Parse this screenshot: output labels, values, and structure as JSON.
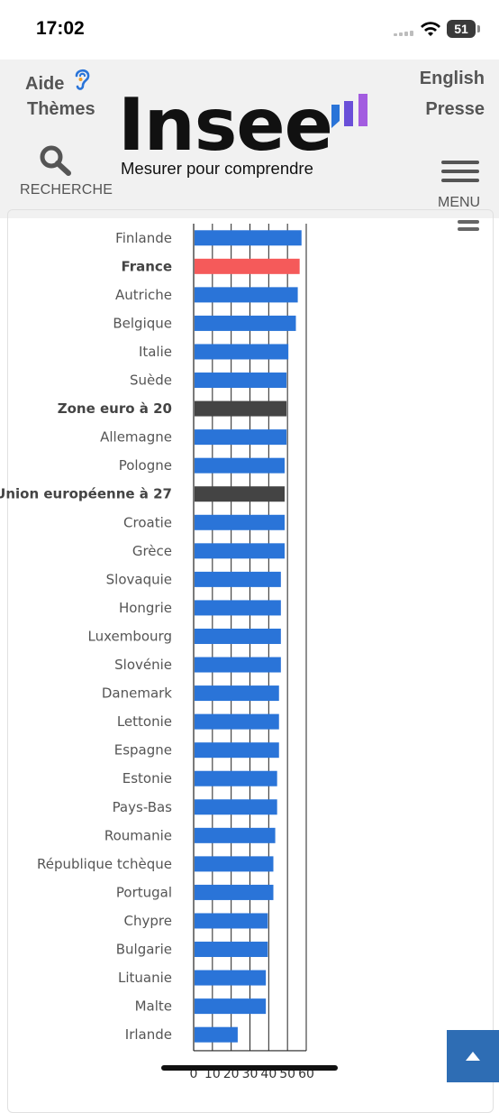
{
  "status": {
    "time": "17:02",
    "battery": "51"
  },
  "header": {
    "aide": "Aide",
    "themes": "Thèmes",
    "recherche": "RECHERCHE",
    "logo": "Insee",
    "tagline": "Mesurer pour comprendre",
    "english": "English",
    "presse": "Presse",
    "menu": "MENU"
  },
  "colors": {
    "series": "#2a74d8",
    "france": "#f55a5a",
    "aggregate": "#444444",
    "logo_bars": [
      "#2a74d8",
      "#6a4fd8",
      "#a35ce0"
    ]
  },
  "chart_data": {
    "type": "bar",
    "orientation": "horizontal",
    "categories": [
      "Finlande",
      "France",
      "Autriche",
      "Belgique",
      "Italie",
      "Suède",
      "Zone euro à 20",
      "Allemagne",
      "Pologne",
      "Union européenne à 27",
      "Croatie",
      "Grèce",
      "Slovaquie",
      "Hongrie",
      "Luxembourg",
      "Slovénie",
      "Danemark",
      "Lettonie",
      "Espagne",
      "Estonie",
      "Pays-Bas",
      "Roumanie",
      "République tchèque",
      "Portugal",
      "Chypre",
      "Bulgarie",
      "Lituanie",
      "Malte",
      "Irlande"
    ],
    "values": [
      57,
      56,
      55,
      54,
      50,
      49,
      49,
      49,
      48,
      48,
      48,
      48,
      46,
      46,
      46,
      46,
      45,
      45,
      45,
      44,
      44,
      43,
      42,
      42,
      39,
      39,
      38,
      38,
      23
    ],
    "highlight": [
      "France"
    ],
    "aggregates": [
      "Zone euro à 20",
      "Union européenne à 27"
    ],
    "xticks": [
      "0",
      "10",
      "20",
      "30",
      "40",
      "50",
      "60"
    ],
    "xlim": [
      0,
      60
    ],
    "grid": true
  }
}
